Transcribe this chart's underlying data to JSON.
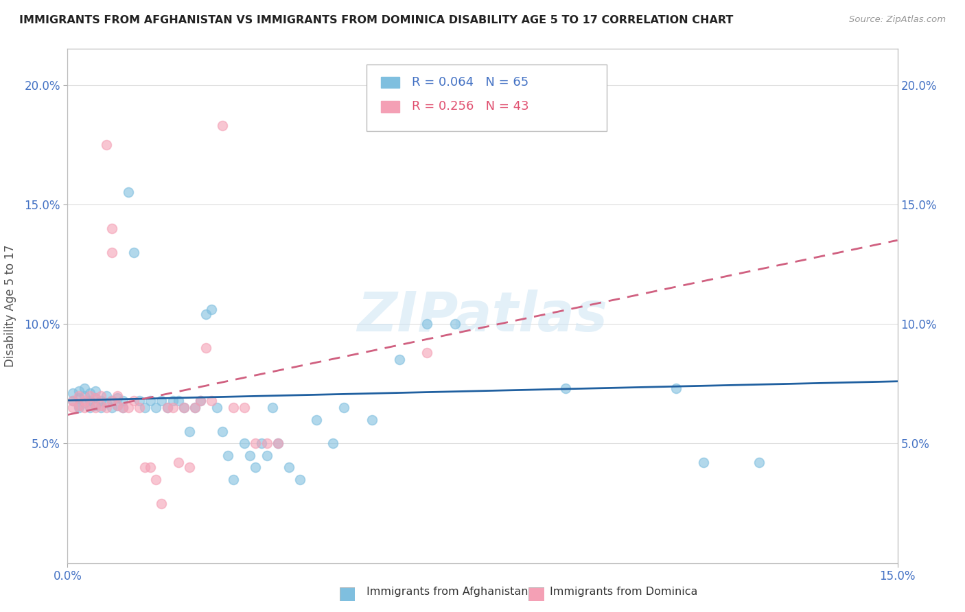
{
  "title": "IMMIGRANTS FROM AFGHANISTAN VS IMMIGRANTS FROM DOMINICA DISABILITY AGE 5 TO 17 CORRELATION CHART",
  "source": "Source: ZipAtlas.com",
  "ylabel": "Disability Age 5 to 17",
  "xlim": [
    0.0,
    0.15
  ],
  "ylim": [
    0.0,
    0.215
  ],
  "afghanistan_R": 0.064,
  "afghanistan_N": 65,
  "dominica_R": 0.256,
  "dominica_N": 43,
  "afghanistan_color": "#7fbfdf",
  "dominica_color": "#f4a0b5",
  "afghanistan_line_color": "#2060a0",
  "dominica_line_color": "#d06080",
  "afg_line_x0": 0.0,
  "afg_line_y0": 0.068,
  "afg_line_x1": 0.15,
  "afg_line_y1": 0.076,
  "dom_line_x0": 0.0,
  "dom_line_y0": 0.062,
  "dom_line_x1": 0.15,
  "dom_line_y1": 0.135,
  "afg_x": [
    0.001,
    0.001,
    0.002,
    0.002,
    0.002,
    0.002,
    0.003,
    0.003,
    0.003,
    0.004,
    0.004,
    0.004,
    0.005,
    0.005,
    0.005,
    0.006,
    0.006,
    0.007,
    0.007,
    0.008,
    0.008,
    0.009,
    0.009,
    0.01,
    0.01,
    0.011,
    0.012,
    0.013,
    0.014,
    0.015,
    0.016,
    0.017,
    0.018,
    0.019,
    0.02,
    0.021,
    0.022,
    0.023,
    0.024,
    0.025,
    0.026,
    0.027,
    0.028,
    0.029,
    0.03,
    0.032,
    0.033,
    0.034,
    0.035,
    0.036,
    0.037,
    0.038,
    0.04,
    0.042,
    0.045,
    0.048,
    0.05,
    0.055,
    0.06,
    0.065,
    0.07,
    0.09,
    0.11,
    0.115,
    0.125
  ],
  "afg_y": [
    0.068,
    0.071,
    0.066,
    0.069,
    0.072,
    0.065,
    0.067,
    0.07,
    0.073,
    0.065,
    0.068,
    0.071,
    0.066,
    0.069,
    0.072,
    0.065,
    0.068,
    0.067,
    0.07,
    0.065,
    0.068,
    0.066,
    0.069,
    0.065,
    0.068,
    0.155,
    0.13,
    0.068,
    0.065,
    0.068,
    0.065,
    0.068,
    0.065,
    0.068,
    0.068,
    0.065,
    0.055,
    0.065,
    0.068,
    0.104,
    0.106,
    0.065,
    0.055,
    0.045,
    0.035,
    0.05,
    0.045,
    0.04,
    0.05,
    0.045,
    0.065,
    0.05,
    0.04,
    0.035,
    0.06,
    0.05,
    0.065,
    0.06,
    0.085,
    0.1,
    0.1,
    0.073,
    0.073,
    0.042,
    0.042
  ],
  "dom_x": [
    0.001,
    0.001,
    0.002,
    0.002,
    0.003,
    0.003,
    0.004,
    0.004,
    0.005,
    0.005,
    0.006,
    0.006,
    0.007,
    0.007,
    0.008,
    0.008,
    0.009,
    0.009,
    0.01,
    0.011,
    0.012,
    0.013,
    0.014,
    0.015,
    0.016,
    0.017,
    0.018,
    0.019,
    0.02,
    0.021,
    0.022,
    0.023,
    0.024,
    0.025,
    0.026,
    0.028,
    0.03,
    0.032,
    0.034,
    0.036,
    0.038,
    0.065,
    0.008
  ],
  "dom_y": [
    0.065,
    0.068,
    0.066,
    0.07,
    0.065,
    0.068,
    0.066,
    0.07,
    0.065,
    0.069,
    0.066,
    0.07,
    0.175,
    0.065,
    0.068,
    0.13,
    0.066,
    0.07,
    0.065,
    0.065,
    0.068,
    0.065,
    0.04,
    0.04,
    0.035,
    0.025,
    0.065,
    0.065,
    0.042,
    0.065,
    0.04,
    0.065,
    0.068,
    0.09,
    0.068,
    0.183,
    0.065,
    0.065,
    0.05,
    0.05,
    0.05,
    0.088,
    0.14
  ]
}
